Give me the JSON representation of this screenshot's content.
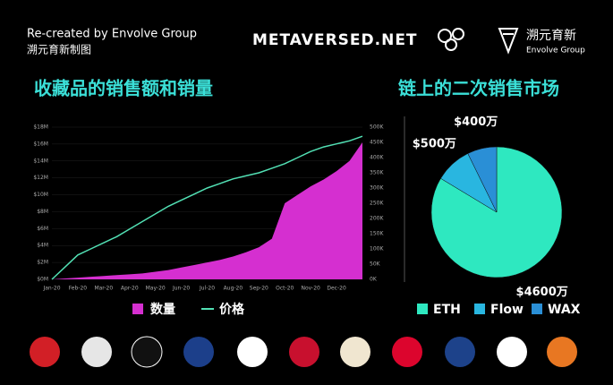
{
  "header": {
    "credit": "Re-created by Envolve Group",
    "credit_cn": "溯元育新制图",
    "site": "METAVERSED.NET",
    "brand_cn": "溯元育新",
    "brand_en": "Envolve Group"
  },
  "chart_data": [
    {
      "type": "combo",
      "title": "收藏品的销售额和销量",
      "categories": [
        "Jan-20",
        null,
        "Feb-20",
        null,
        "Mar-20",
        null,
        "Apr-20",
        null,
        "May-20",
        null,
        "Jun-20",
        null,
        "Jul-20",
        null,
        "Aug-20",
        null,
        "Sep-20",
        null,
        "Oct-20",
        null,
        "Nov-20",
        null,
        "Dec-20",
        null,
        null
      ],
      "series": [
        {
          "name": "数量",
          "type": "area",
          "color": "#d52fd0",
          "values": [
            0,
            0.1,
            0.2,
            0.3,
            0.4,
            0.5,
            0.6,
            0.7,
            0.9,
            1.1,
            1.4,
            1.7,
            2.0,
            2.3,
            2.7,
            3.2,
            3.8,
            4.8,
            9.0,
            10.0,
            11.0,
            11.8,
            12.8,
            14.0,
            16.2
          ]
        },
        {
          "name": "价格",
          "type": "line",
          "axis": "y2",
          "color": "#52e0b4",
          "values": [
            0,
            40,
            80,
            100,
            120,
            140,
            165,
            190,
            215,
            240,
            260,
            280,
            300,
            315,
            330,
            340,
            350,
            365,
            380,
            400,
            420,
            435,
            445,
            455,
            470
          ]
        }
      ],
      "ylim": [
        0,
        18
      ],
      "yticks": [
        {
          "value": 0,
          "label": "$0M"
        },
        {
          "value": 2,
          "label": "$2M"
        },
        {
          "value": 4,
          "label": "$4M"
        },
        {
          "value": 6,
          "label": "$6M"
        },
        {
          "value": 8,
          "label": "$8M"
        },
        {
          "value": 10,
          "label": "$10M"
        },
        {
          "value": 12,
          "label": "$12M"
        },
        {
          "value": 14,
          "label": "$14M"
        },
        {
          "value": 16,
          "label": "$16M"
        },
        {
          "value": 18,
          "label": "$18M"
        }
      ],
      "y2lim": [
        0,
        500
      ],
      "y2ticks": [
        {
          "value": 0,
          "label": "0K"
        },
        {
          "value": 50,
          "label": "50K"
        },
        {
          "value": 100,
          "label": "100K"
        },
        {
          "value": 150,
          "label": "150K"
        },
        {
          "value": 200,
          "label": "200K"
        },
        {
          "value": 250,
          "label": "250K"
        },
        {
          "value": 300,
          "label": "300K"
        },
        {
          "value": 350,
          "label": "350K"
        },
        {
          "value": 400,
          "label": "400K"
        },
        {
          "value": 450,
          "label": "450K"
        },
        {
          "value": 500,
          "label": "500K"
        }
      ]
    },
    {
      "type": "pie",
      "title": "链上的二次销售市场",
      "categories": [
        "ETH",
        "Flow",
        "WAX"
      ],
      "values": [
        4600,
        500,
        400
      ],
      "value_labels": [
        "$4600万",
        "$500万",
        "$400万"
      ],
      "colors": [
        "#2ee8c0",
        "#29b6e0",
        "#2a8fd6"
      ]
    }
  ]
}
